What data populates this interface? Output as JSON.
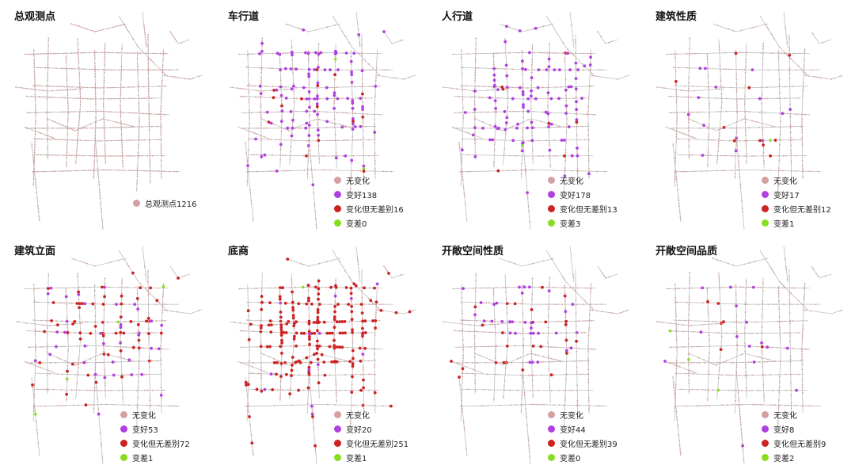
{
  "colors": {
    "road": "#bdbdbd",
    "no_change": "#d4a0a0",
    "better": "#b040e0",
    "changed_no_diff": "#cc2222",
    "worse": "#88dd22"
  },
  "panels": [
    {
      "id": "total",
      "title": "总观测点",
      "density": "base",
      "legend": [
        {
          "key": "no_change",
          "label": "总观测点1216"
        }
      ]
    },
    {
      "id": "roadway",
      "title": "车行道",
      "density": "better-heavy",
      "legend": [
        {
          "key": "no_change",
          "label": "无变化"
        },
        {
          "key": "better",
          "label": "变好138"
        },
        {
          "key": "changed_no_diff",
          "label": "变化但无差别16"
        },
        {
          "key": "worse",
          "label": "变差0"
        }
      ]
    },
    {
      "id": "sidewalk",
      "title": "人行道",
      "density": "better-heavy",
      "legend": [
        {
          "key": "no_change",
          "label": "无变化"
        },
        {
          "key": "better",
          "label": "变好178"
        },
        {
          "key": "changed_no_diff",
          "label": "变化但无差别13"
        },
        {
          "key": "worse",
          "label": "变差3"
        }
      ]
    },
    {
      "id": "building_type",
      "title": "建筑性质",
      "density": "sparse",
      "legend": [
        {
          "key": "no_change",
          "label": "无变化"
        },
        {
          "key": "better",
          "label": "变好17"
        },
        {
          "key": "changed_no_diff",
          "label": "变化但无差别12"
        },
        {
          "key": "worse",
          "label": "变差1"
        }
      ]
    },
    {
      "id": "facade",
      "title": "建筑立面",
      "density": "red-medium",
      "legend": [
        {
          "key": "no_change",
          "label": "无变化"
        },
        {
          "key": "better",
          "label": "变好53"
        },
        {
          "key": "changed_no_diff",
          "label": "变化但无差别72"
        },
        {
          "key": "worse",
          "label": "变差1"
        }
      ]
    },
    {
      "id": "ground_retail",
      "title": "底商",
      "density": "red-heavy",
      "legend": [
        {
          "key": "no_change",
          "label": "无变化"
        },
        {
          "key": "better",
          "label": "变好20"
        },
        {
          "key": "changed_no_diff",
          "label": "变化但无差别251"
        },
        {
          "key": "worse",
          "label": "变差1"
        }
      ]
    },
    {
      "id": "open_space_type",
      "title": "开敞空间性质",
      "density": "mixed",
      "legend": [
        {
          "key": "no_change",
          "label": "无变化"
        },
        {
          "key": "better",
          "label": "变好44"
        },
        {
          "key": "changed_no_diff",
          "label": "变化但无差别39"
        },
        {
          "key": "worse",
          "label": "变差0"
        }
      ]
    },
    {
      "id": "open_space_quality",
      "title": "开敞空间品质",
      "density": "sparse",
      "legend": [
        {
          "key": "no_change",
          "label": "无变化"
        },
        {
          "key": "better",
          "label": "变好8"
        },
        {
          "key": "changed_no_diff",
          "label": "变化但无差别9"
        },
        {
          "key": "worse",
          "label": "变差2"
        }
      ]
    }
  ]
}
